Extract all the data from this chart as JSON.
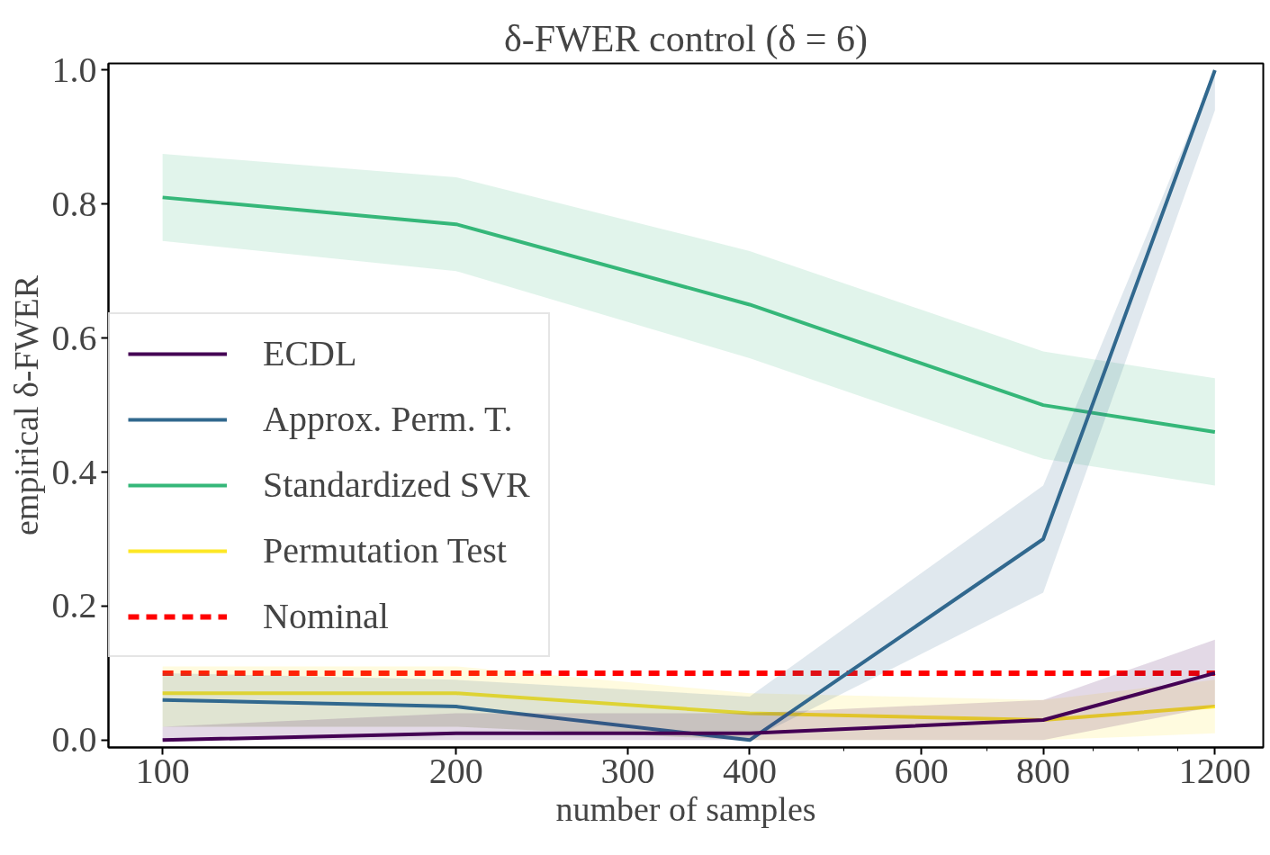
{
  "chart_data": {
    "type": "line",
    "title": "δ-FWER control (δ = 6)",
    "xlabel": "number of samples",
    "ylabel": "empirical δ-FWER",
    "log": "x",
    "xlim": [
      88,
      1345
    ],
    "ylim": [
      -0.011,
      1.01
    ],
    "xticks": [
      100,
      200,
      300,
      400,
      {
        "value": 500,
        "label": null
      },
      600,
      {
        "value": 700,
        "label": null
      },
      800,
      {
        "value": 900,
        "label": null
      },
      {
        "value": 1000,
        "label": null
      },
      {
        "value": 1100,
        "label": null
      },
      1200
    ],
    "yticks": [
      {
        "value": 0,
        "label": "0.0"
      },
      0.2,
      0.4,
      0.6,
      0.8,
      {
        "value": 1,
        "label": "1.0"
      }
    ],
    "grid": false,
    "legend": "left",
    "x": [
      100,
      200,
      400,
      800,
      1200
    ],
    "series": [
      {
        "name": "ECDL",
        "color": "#440154",
        "values": [
          0.0,
          0.01,
          0.01,
          0.03,
          0.1
        ],
        "lower": [
          0.0,
          0.0,
          0.0,
          0.0,
          0.05
        ],
        "upper": [
          0.02,
          0.04,
          0.04,
          0.06,
          0.15
        ]
      },
      {
        "name": "Approx. Perm. T.",
        "color": "#31688e",
        "values": [
          0.06,
          0.05,
          0.0,
          0.3,
          1.0
        ],
        "lower": [
          0.02,
          0.02,
          0.0,
          0.22,
          0.94
        ],
        "upper": [
          0.1,
          0.09,
          0.065,
          0.38,
          1.0
        ]
      },
      {
        "name": "Standardized SVR",
        "color": "#35b779",
        "values": [
          0.81,
          0.77,
          0.65,
          0.5,
          0.46
        ],
        "lower": [
          0.745,
          0.7,
          0.57,
          0.42,
          0.38
        ],
        "upper": [
          0.875,
          0.84,
          0.73,
          0.58,
          0.54
        ]
      },
      {
        "name": "Permutation Test",
        "color": "#fde725",
        "values": [
          0.07,
          0.07,
          0.04,
          0.03,
          0.05
        ],
        "lower": [
          0.02,
          0.02,
          0.0,
          0.0,
          0.01
        ],
        "upper": [
          0.11,
          0.11,
          0.07,
          0.06,
          0.09
        ]
      },
      {
        "name": "Nominal",
        "color": "#ff0000",
        "x": [
          100,
          1200
        ],
        "values": [
          0.1,
          0.1
        ],
        "line_style": "dashed"
      }
    ]
  }
}
